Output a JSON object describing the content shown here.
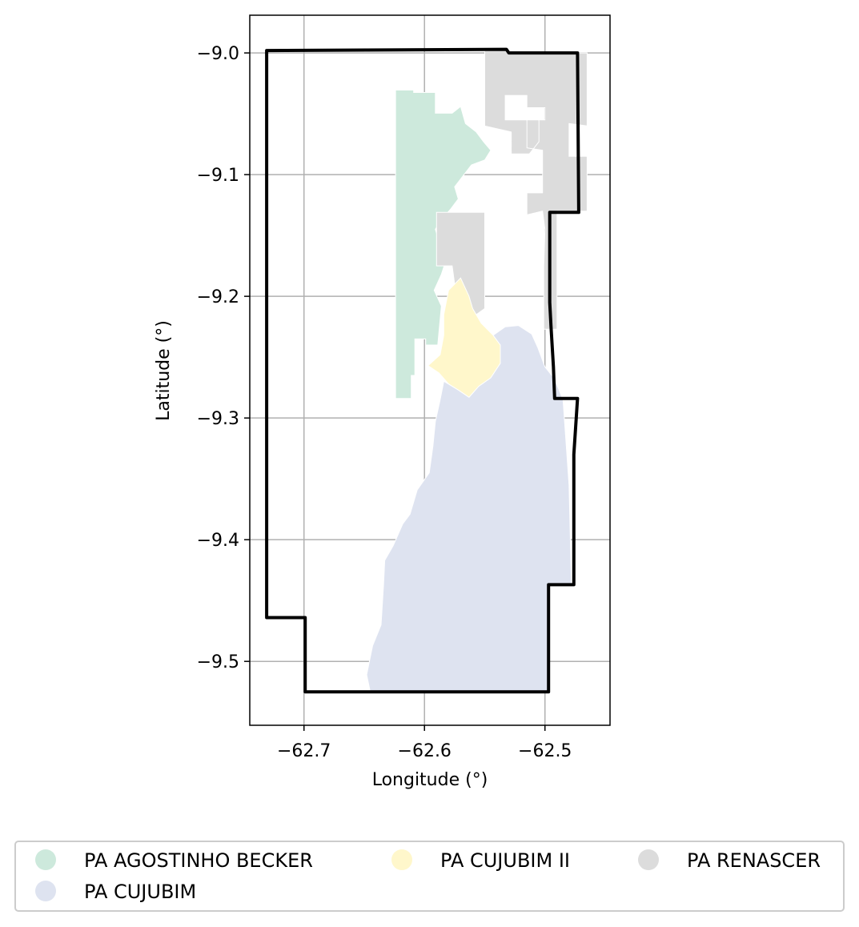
{
  "chart_data": {
    "type": "map",
    "xlabel": "Longitude (°)",
    "ylabel": "Latitude (°)",
    "xlim": [
      -62.745,
      -62.446
    ],
    "ylim": [
      -9.5525,
      -8.969
    ],
    "grid": true,
    "x_ticks": [
      {
        "value": -62.7,
        "label": "−62.7"
      },
      {
        "value": -62.6,
        "label": "−62.6"
      },
      {
        "value": -62.5,
        "label": "−62.5"
      }
    ],
    "y_ticks": [
      {
        "value": -9.0,
        "label": "−9.0"
      },
      {
        "value": -9.1,
        "label": "−9.1"
      },
      {
        "value": -9.2,
        "label": "−9.2"
      },
      {
        "value": -9.3,
        "label": "−9.3"
      },
      {
        "value": -9.4,
        "label": "−9.4"
      },
      {
        "value": -9.5,
        "label": "−9.5"
      }
    ],
    "legend_position": "bottom",
    "legend": [
      {
        "name": "PA AGOSTINHO BECKER",
        "color": "#cde9dc"
      },
      {
        "name": "PA CUJUBIM II",
        "color": "#fff7cb"
      },
      {
        "name": "PA RENASCER",
        "color": "#dcdcdc"
      },
      {
        "name": "PA CUJUBIM",
        "color": "#dee3f0"
      }
    ],
    "regions": [
      {
        "name": "PA AGOSTINHO BECKER",
        "color": "#cde9dc",
        "coords": [
          [
            -62.624,
            -9.0305
          ],
          [
            -62.609,
            -9.0305
          ],
          [
            -62.609,
            -9.0325
          ],
          [
            -62.591,
            -9.0325
          ],
          [
            -62.591,
            -9.0495
          ],
          [
            -62.577,
            -9.0495
          ],
          [
            -62.57,
            -9.044
          ],
          [
            -62.566,
            -9.058
          ],
          [
            -62.557,
            -9.065
          ],
          [
            -62.551,
            -9.073
          ],
          [
            -62.545,
            -9.08
          ],
          [
            -62.55,
            -9.088
          ],
          [
            -62.561,
            -9.092
          ],
          [
            -62.568,
            -9.101
          ],
          [
            -62.575,
            -9.11
          ],
          [
            -62.572,
            -9.12
          ],
          [
            -62.578,
            -9.128
          ],
          [
            -62.586,
            -9.137
          ],
          [
            -62.591,
            -9.145
          ],
          [
            -62.587,
            -9.158
          ],
          [
            -62.582,
            -9.17
          ],
          [
            -62.586,
            -9.182
          ],
          [
            -62.592,
            -9.195
          ],
          [
            -62.586,
            -9.208
          ],
          [
            -62.589,
            -9.24
          ],
          [
            -62.599,
            -9.24
          ],
          [
            -62.599,
            -9.235
          ],
          [
            -62.608,
            -9.235
          ],
          [
            -62.608,
            -9.265
          ],
          [
            -62.611,
            -9.265
          ],
          [
            -62.611,
            -9.284
          ],
          [
            -62.624,
            -9.284
          ]
        ]
      },
      {
        "name": "PA RENASCER",
        "color": "#dcdcdc",
        "coords": [
          [
            -62.55,
            -8.998
          ],
          [
            -62.532,
            -8.997
          ],
          [
            -62.53,
            -9.0
          ],
          [
            -62.465,
            -9.0
          ],
          [
            -62.465,
            -9.06
          ],
          [
            -62.48,
            -9.058
          ],
          [
            -62.48,
            -9.085
          ],
          [
            -62.465,
            -9.085
          ],
          [
            -62.465,
            -9.13
          ],
          [
            -62.48,
            -9.13
          ],
          [
            -62.49,
            -9.13
          ],
          [
            -62.49,
            -9.14
          ],
          [
            -62.49,
            -9.227
          ],
          [
            -62.501,
            -9.227
          ],
          [
            -62.501,
            -9.175
          ],
          [
            -62.5,
            -9.145
          ],
          [
            -62.502,
            -9.13
          ],
          [
            -62.515,
            -9.133
          ],
          [
            -62.515,
            -9.115
          ],
          [
            -62.502,
            -9.115
          ],
          [
            -62.502,
            -9.08
          ],
          [
            -62.515,
            -9.078
          ],
          [
            -62.515,
            -9.055
          ],
          [
            -62.5,
            -9.055
          ],
          [
            -62.5,
            -9.045
          ],
          [
            -62.515,
            -9.045
          ],
          [
            -62.515,
            -9.035
          ],
          [
            -62.533,
            -9.035
          ],
          [
            -62.533,
            -9.055
          ],
          [
            -62.505,
            -9.055
          ],
          [
            -62.505,
            -9.073
          ],
          [
            -62.513,
            -9.083
          ],
          [
            -62.528,
            -9.083
          ],
          [
            -62.528,
            -9.065
          ],
          [
            -62.55,
            -9.06
          ]
        ]
      },
      {
        "name": "PA RENASCER",
        "color": "#dcdcdc",
        "coords": [
          [
            -62.59,
            -9.131
          ],
          [
            -62.576,
            -9.131
          ],
          [
            -62.568,
            -9.131
          ],
          [
            -62.55,
            -9.131
          ],
          [
            -62.55,
            -9.21
          ],
          [
            -62.557,
            -9.215
          ],
          [
            -62.566,
            -9.205
          ],
          [
            -62.575,
            -9.19
          ],
          [
            -62.577,
            -9.175
          ],
          [
            -62.59,
            -9.175
          ]
        ]
      },
      {
        "name": "PA CUJUBIM II",
        "color": "#fff7cb",
        "coords": [
          [
            -62.57,
            -9.185
          ],
          [
            -62.563,
            -9.2
          ],
          [
            -62.56,
            -9.21
          ],
          [
            -62.553,
            -9.222
          ],
          [
            -62.543,
            -9.232
          ],
          [
            -62.537,
            -9.24
          ],
          [
            -62.537,
            -9.255
          ],
          [
            -62.545,
            -9.267
          ],
          [
            -62.555,
            -9.274
          ],
          [
            -62.563,
            -9.283
          ],
          [
            -62.572,
            -9.277
          ],
          [
            -62.58,
            -9.272
          ],
          [
            -62.588,
            -9.263
          ],
          [
            -62.597,
            -9.257
          ],
          [
            -62.587,
            -9.248
          ],
          [
            -62.584,
            -9.232
          ],
          [
            -62.584,
            -9.215
          ],
          [
            -62.58,
            -9.195
          ]
        ]
      },
      {
        "name": "PA CUJUBIM",
        "color": "#dee3f0",
        "coords": [
          [
            -62.543,
            -9.232
          ],
          [
            -62.533,
            -9.225
          ],
          [
            -62.522,
            -9.224
          ],
          [
            -62.511,
            -9.231
          ],
          [
            -62.506,
            -9.242
          ],
          [
            -62.5,
            -9.258
          ],
          [
            -62.492,
            -9.268
          ],
          [
            -62.485,
            -9.285
          ],
          [
            -62.48,
            -9.355
          ],
          [
            -62.478,
            -9.437
          ],
          [
            -62.497,
            -9.437
          ],
          [
            -62.497,
            -9.525
          ],
          [
            -62.544,
            -9.525
          ],
          [
            -62.645,
            -9.525
          ],
          [
            -62.648,
            -9.511
          ],
          [
            -62.643,
            -9.487
          ],
          [
            -62.636,
            -9.47
          ],
          [
            -62.634,
            -9.437
          ],
          [
            -62.633,
            -9.417
          ],
          [
            -62.626,
            -9.405
          ],
          [
            -62.618,
            -9.387
          ],
          [
            -62.612,
            -9.379
          ],
          [
            -62.606,
            -9.359
          ],
          [
            -62.596,
            -9.345
          ],
          [
            -62.593,
            -9.323
          ],
          [
            -62.591,
            -9.303
          ],
          [
            -62.587,
            -9.285
          ],
          [
            -62.584,
            -9.27
          ],
          [
            -62.597,
            -9.257
          ],
          [
            -62.587,
            -9.268
          ],
          [
            -62.572,
            -9.277
          ],
          [
            -62.563,
            -9.283
          ],
          [
            -62.555,
            -9.274
          ],
          [
            -62.545,
            -9.267
          ],
          [
            -62.537,
            -9.255
          ],
          [
            -62.537,
            -9.24
          ]
        ]
      }
    ],
    "boundary": {
      "color": "#000000",
      "coords": [
        [
          -62.731,
          -8.998
        ],
        [
          -62.532,
          -8.997
        ],
        [
          -62.53,
          -9.0
        ],
        [
          -62.473,
          -9.0
        ],
        [
          -62.472,
          -9.131
        ],
        [
          -62.496,
          -9.131
        ],
        [
          -62.496,
          -9.205
        ],
        [
          -62.495,
          -9.225
        ],
        [
          -62.493,
          -9.258
        ],
        [
          -62.492,
          -9.284
        ],
        [
          -62.473,
          -9.284
        ],
        [
          -62.476,
          -9.33
        ],
        [
          -62.476,
          -9.437
        ],
        [
          -62.497,
          -9.437
        ],
        [
          -62.497,
          -9.525
        ],
        [
          -62.699,
          -9.525
        ],
        [
          -62.699,
          -9.464
        ],
        [
          -62.731,
          -9.464
        ],
        [
          -62.731,
          -9.445
        ],
        [
          -62.731,
          -9.0
        ]
      ]
    }
  }
}
